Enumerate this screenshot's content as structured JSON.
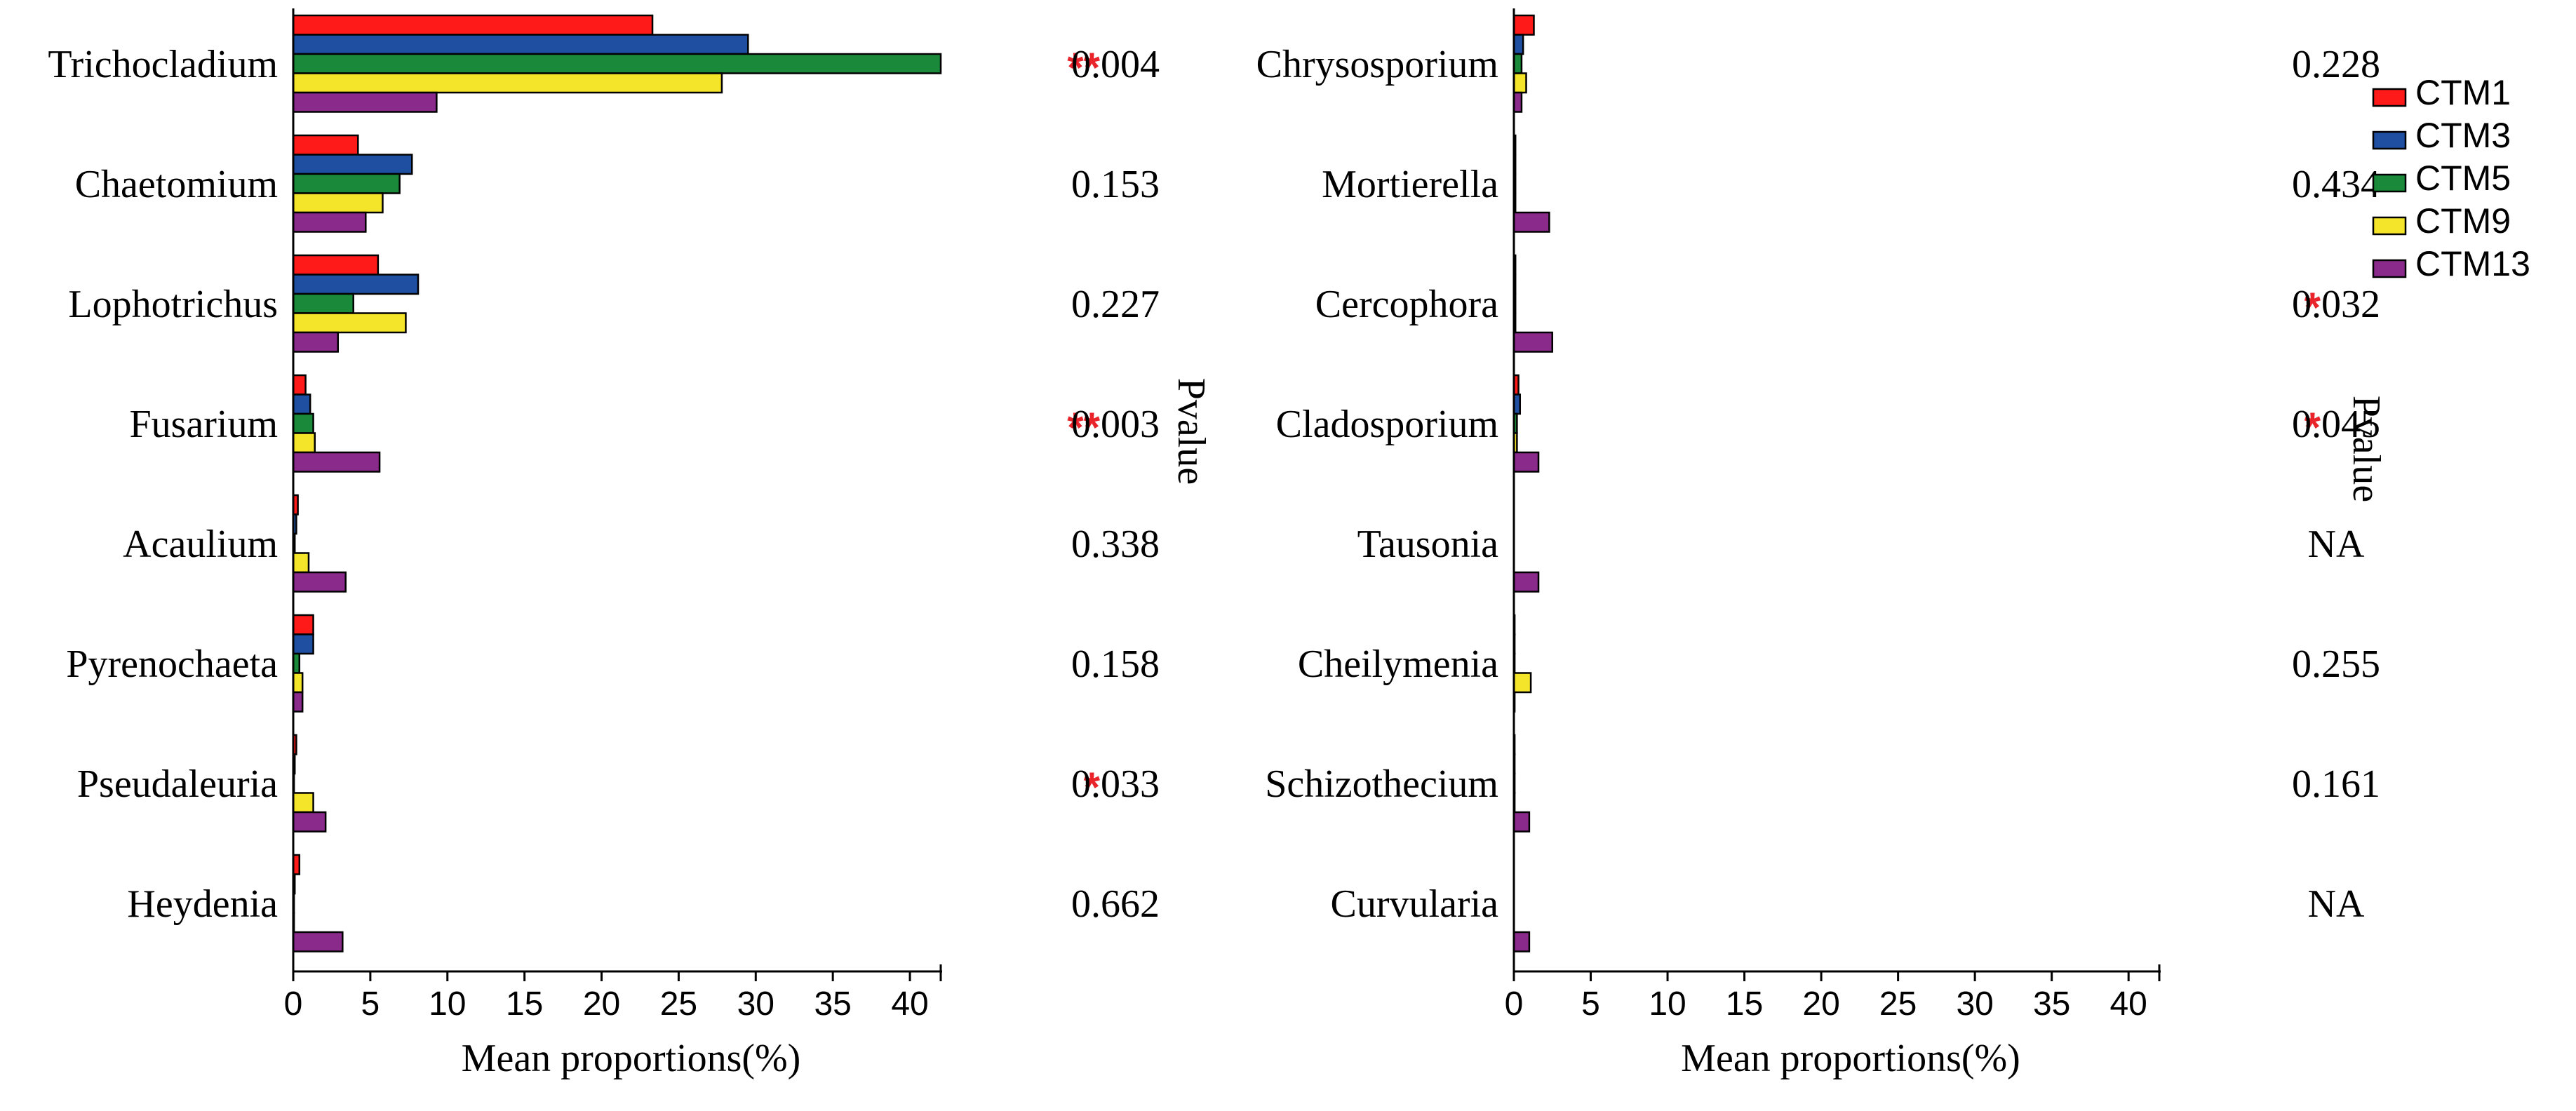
{
  "chart_data": {
    "type": "bar",
    "orientation": "horizontal",
    "xlabel": "Mean proportions(%)",
    "pvalue_label": "Pvalue",
    "xlim": [
      0,
      42
    ],
    "xticks": [
      0,
      5,
      10,
      15,
      20,
      25,
      30,
      35,
      40
    ],
    "series_names": [
      "CTM1",
      "CTM3",
      "CTM5",
      "CTM9",
      "CTM13"
    ],
    "colors": [
      "#ff1a1a",
      "#1e4fa0",
      "#1a8a3a",
      "#f5e52a",
      "#8a2a8a"
    ],
    "legend_position": "top-right",
    "panels": [
      {
        "id": "left",
        "genera": [
          {
            "name": "Trichocladium",
            "values": [
              23.3,
              29.5,
              42.0,
              27.8,
              9.3
            ],
            "sig": "**",
            "pvalue": "0.004"
          },
          {
            "name": "Chaetomium",
            "values": [
              4.2,
              7.7,
              6.9,
              5.8,
              4.7
            ],
            "sig": "",
            "pvalue": "0.153"
          },
          {
            "name": "Lophotrichus",
            "values": [
              5.5,
              8.1,
              3.9,
              7.3,
              2.9
            ],
            "sig": "",
            "pvalue": "0.227"
          },
          {
            "name": "Fusarium",
            "values": [
              0.8,
              1.1,
              1.3,
              1.4,
              5.6
            ],
            "sig": "**",
            "pvalue": "0.003"
          },
          {
            "name": "Acaulium",
            "values": [
              0.3,
              0.2,
              0.1,
              1.0,
              3.4
            ],
            "sig": "",
            "pvalue": "0.338"
          },
          {
            "name": "Pyrenochaeta",
            "values": [
              1.3,
              1.3,
              0.4,
              0.6,
              0.6
            ],
            "sig": "",
            "pvalue": "0.158"
          },
          {
            "name": "Pseudaleuria",
            "values": [
              0.2,
              0.1,
              0.05,
              1.3,
              2.1
            ],
            "sig": "*",
            "pvalue": "0.033"
          },
          {
            "name": "Heydenia",
            "values": [
              0.4,
              0.1,
              0.05,
              0.05,
              3.2
            ],
            "sig": "",
            "pvalue": "0.662"
          }
        ]
      },
      {
        "id": "right",
        "genera": [
          {
            "name": "Chrysosporium",
            "values": [
              1.3,
              0.6,
              0.5,
              0.8,
              0.5
            ],
            "sig": "",
            "pvalue": "0.228"
          },
          {
            "name": "Mortierella",
            "values": [
              0.1,
              0.1,
              0.1,
              0.1,
              2.3
            ],
            "sig": "",
            "pvalue": "0.434"
          },
          {
            "name": "Cercophora",
            "values": [
              0.1,
              0.1,
              0.1,
              0.1,
              2.5
            ],
            "sig": "*",
            "pvalue": "0.032"
          },
          {
            "name": "Cladosporium",
            "values": [
              0.3,
              0.4,
              0.2,
              0.2,
              1.6
            ],
            "sig": "*",
            "pvalue": "0.045"
          },
          {
            "name": "Tausonia",
            "values": [
              0.0,
              0.0,
              0.0,
              0.0,
              1.6
            ],
            "sig": "",
            "pvalue": "NA"
          },
          {
            "name": "Cheilymenia",
            "values": [
              0.05,
              0.05,
              0.05,
              1.1,
              0.05
            ],
            "sig": "",
            "pvalue": "0.255"
          },
          {
            "name": "Schizothecium",
            "values": [
              0.05,
              0.05,
              0.05,
              0.05,
              1.0
            ],
            "sig": "",
            "pvalue": "0.161"
          },
          {
            "name": "Curvularia",
            "values": [
              0.0,
              0.0,
              0.0,
              0.0,
              1.0
            ],
            "sig": "",
            "pvalue": "NA"
          }
        ]
      }
    ]
  }
}
